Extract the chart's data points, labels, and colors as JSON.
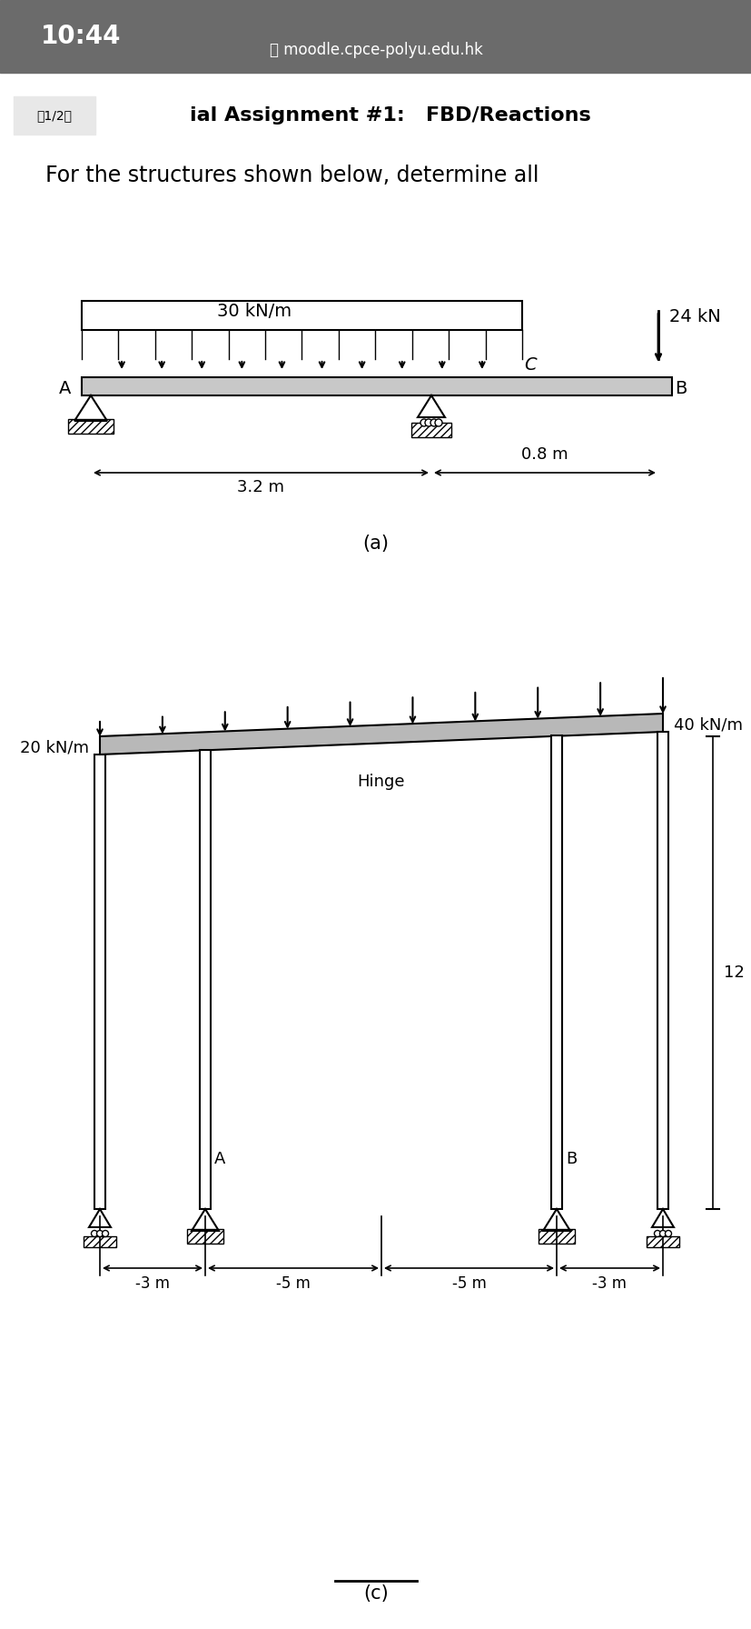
{
  "bg_color": "#ffffff",
  "status_bar_bg": "#6b6b6b",
  "status_time": "10:44",
  "status_url": "moodle.cpce-polyu.edu.hk",
  "nav_label": "第1/2頁",
  "header_text": "ial Assignment #1:   FBD/Reactions",
  "subtitle": "For the structures shown below, determine all",
  "diagram_a_label": "(a)",
  "diagram_c_label": "(c)",
  "fig_width": 8.28,
  "fig_height": 17.92
}
